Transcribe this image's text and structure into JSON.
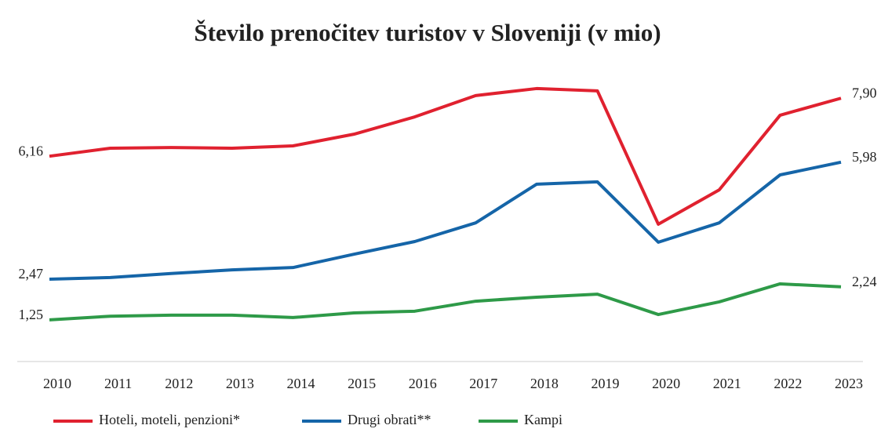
{
  "chart_data": {
    "type": "line",
    "title": "Število prenočitev turistov v Sloveniji (v mio)",
    "categories": [
      "2010",
      "2011",
      "2012",
      "2013",
      "2014",
      "2015",
      "2016",
      "2017",
      "2018",
      "2019",
      "2020",
      "2021",
      "2022",
      "2023"
    ],
    "ylim": [
      0,
      8.6
    ],
    "series": [
      {
        "name": "Hoteli, moteli, penzioni*",
        "color": "#e0212f",
        "values": [
          6.16,
          6.4,
          6.42,
          6.4,
          6.47,
          6.82,
          7.34,
          7.98,
          8.19,
          8.12,
          4.12,
          5.15,
          7.39,
          7.9
        ],
        "value_labels": [
          "6,16",
          null,
          null,
          null,
          null,
          null,
          null,
          null,
          null,
          null,
          null,
          null,
          null,
          "7,90"
        ]
      },
      {
        "name": "Drugi obrati**",
        "color": "#1565a8",
        "values": [
          2.47,
          2.52,
          2.64,
          2.75,
          2.82,
          3.22,
          3.6,
          4.16,
          5.32,
          5.39,
          3.58,
          4.16,
          5.6,
          5.98
        ],
        "value_labels": [
          "2,47",
          null,
          null,
          null,
          null,
          null,
          null,
          null,
          null,
          null,
          null,
          null,
          null,
          "5,98"
        ]
      },
      {
        "name": "Kampi",
        "color": "#2e9a48",
        "values": [
          1.25,
          1.36,
          1.39,
          1.39,
          1.32,
          1.46,
          1.51,
          1.81,
          1.93,
          2.02,
          1.41,
          1.79,
          2.33,
          2.24
        ],
        "value_labels": [
          "1,25",
          null,
          null,
          null,
          null,
          null,
          null,
          null,
          null,
          null,
          null,
          null,
          null,
          "2,24"
        ]
      }
    ]
  }
}
